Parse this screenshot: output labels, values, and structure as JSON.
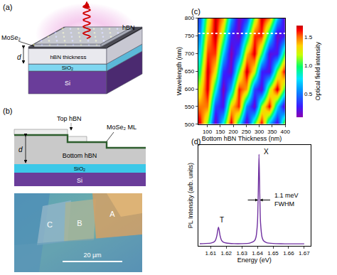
{
  "chart_data": [
    {
      "panel": "(c)",
      "type": "heatmap",
      "x_label": "Bottom hBN Thickness (nm)",
      "y_label": "Wavelength (nm)",
      "x": [
        70,
        100,
        130,
        160,
        190,
        220,
        250,
        280,
        310,
        340,
        370,
        400
      ],
      "y": [
        500,
        550,
        600,
        650,
        700,
        750,
        800
      ],
      "z": [
        [
          1.67,
          1.06,
          0.11,
          0.84,
          1.7,
          0.84,
          0.11,
          1.06,
          1.67,
          0.63,
          0.17,
          1.27
        ],
        [
          1.48,
          1.48,
          0.39,
          0.25,
          1.33,
          1.6,
          0.56,
          0.16,
          1.15,
          1.65,
          0.75,
          0.11
        ],
        [
          1.22,
          1.68,
          0.86,
          0.11,
          0.65,
          1.6,
          1.41,
          0.39,
          0.2,
          1.15,
          1.7,
          0.94
        ],
        [
          0.97,
          1.69,
          1.29,
          0.34,
          0.18,
          1.04,
          1.7,
          1.23,
          0.3,
          0.22,
          1.1,
          1.7
        ],
        [
          0.74,
          1.56,
          1.56,
          0.74,
          0.11,
          0.47,
          1.37,
          1.67,
          1.02,
          0.21,
          0.26,
          1.1
        ],
        [
          0.54,
          1.38,
          1.7,
          1.12,
          0.31,
          0.15,
          0.82,
          1.58,
          1.58,
          0.82,
          0.15,
          0.31
        ],
        [
          0.4,
          1.19,
          1.7,
          1.42,
          0.64,
          0.12,
          0.36,
          1.13,
          1.69,
          1.46,
          0.7,
          0.13
        ]
      ],
      "xlim": [
        65,
        400
      ],
      "ylim": [
        500,
        800
      ],
      "xticks": [
        100,
        150,
        200,
        250,
        300,
        350,
        400
      ],
      "yticks": [
        500,
        550,
        600,
        650,
        700,
        750,
        800
      ],
      "colorbar": {
        "title": "Optical field intensity",
        "range": [
          0.1,
          1.7
        ],
        "ticks": [
          0.5,
          {
            "value": 1,
            "label": "1.0"
          },
          1.5
        ]
      },
      "reference_line": {
        "y": 757,
        "line_style": "dotted",
        "color": "#ffffff"
      }
    },
    {
      "panel": "(d)",
      "type": "line",
      "x_label": "Energy (eV)",
      "y_label": "PL Intensity (arb. units)",
      "x": [
        1.603,
        1.605,
        1.61,
        1.612,
        1.613,
        1.614,
        1.6145,
        1.615,
        1.6155,
        1.616,
        1.617,
        1.618,
        1.62,
        1.625,
        1.63,
        1.635,
        1.638,
        1.639,
        1.64,
        1.6405,
        1.641,
        1.6415,
        1.642,
        1.643,
        1.644,
        1.646,
        1.65,
        1.655,
        1.66,
        1.665,
        1.67
      ],
      "values": [
        0.021,
        0.022,
        0.028,
        0.039,
        0.057,
        0.111,
        0.165,
        0.202,
        0.165,
        0.111,
        0.057,
        0.04,
        0.029,
        0.022,
        0.022,
        0.028,
        0.052,
        0.089,
        0.248,
        0.556,
        1.0,
        0.556,
        0.248,
        0.089,
        0.052,
        0.032,
        0.024,
        0.021,
        0.02,
        0.02,
        0.02
      ],
      "color": "#7030a0",
      "xlim": [
        1.602,
        1.674
      ],
      "ylim": [
        0,
        1.1
      ],
      "xticks": [
        1.61,
        1.62,
        1.63,
        1.64,
        1.65,
        1.66,
        1.67
      ],
      "tick_labels": "x",
      "annotations": [
        {
          "text": "T",
          "x": 1.615,
          "y": 0.22
        },
        {
          "text": "X",
          "x": 1.6432,
          "y": 0.97
        }
      ],
      "fwhm": {
        "center": 1.641,
        "width": 0.0011,
        "y": 0.5,
        "label": [
          "1.1 meV",
          "FWHM"
        ]
      }
    }
  ],
  "diagrams": {
    "a": {
      "label": "(a)",
      "texts": {
        "top_hbn": "hBN",
        "monolayer": "MoSe₂",
        "hbn_thickness": "hBN thickness",
        "d": "d",
        "sio2": "SiO₂",
        "si": "Si"
      }
    },
    "b": {
      "label": "(b)",
      "texts": {
        "top_hbn": "Top hBN",
        "monolayer": "MoSe₂ ML",
        "bottom_hbn": "Bottom hBN",
        "d": "d",
        "sio2": "SiO₂",
        "si": "Si"
      },
      "micrograph": {
        "regions": [
          "C",
          "B",
          "A"
        ],
        "scale_bar": "20 µm"
      }
    }
  }
}
